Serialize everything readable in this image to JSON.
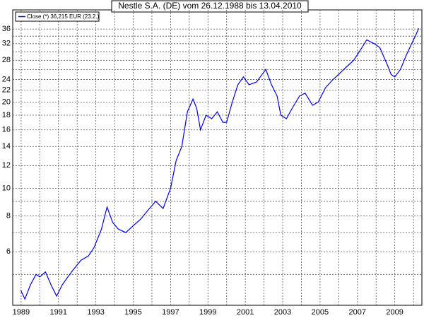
{
  "chart_data": {
    "type": "line",
    "title": "Nestle S.A. (DE) vom 26.12.1988 bis 13.04.2010",
    "log_scale_y": true,
    "grid": true,
    "x": [
      1988.98,
      1989.2,
      1989.5,
      1989.8,
      1990.0,
      1990.3,
      1990.6,
      1990.9,
      1991.2,
      1991.5,
      1991.8,
      1992.2,
      1992.6,
      1992.9,
      1993.3,
      1993.6,
      1993.9,
      1994.2,
      1994.6,
      1995.0,
      1995.4,
      1995.8,
      1996.2,
      1996.6,
      1997.0,
      1997.3,
      1997.6,
      1997.9,
      1998.2,
      1998.4,
      1998.6,
      1998.9,
      1999.2,
      1999.5,
      1999.8,
      2000.0,
      2000.3,
      2000.6,
      2000.9,
      2001.2,
      2001.6,
      2001.9,
      2002.1,
      2002.4,
      2002.7,
      2002.9,
      2003.2,
      2003.5,
      2003.9,
      2004.2,
      2004.6,
      2004.9,
      2005.3,
      2005.7,
      2006.0,
      2006.4,
      2006.8,
      2007.1,
      2007.5,
      2007.9,
      2008.2,
      2008.6,
      2008.8,
      2009.0,
      2009.3,
      2009.6,
      2009.9,
      2010.1,
      2010.28
    ],
    "series": [
      {
        "name": "Close (*) 36,215 EUR (23.2.)",
        "color": "#0000ee",
        "values": [
          4.4,
          4.1,
          4.6,
          5.0,
          4.9,
          5.1,
          4.6,
          4.2,
          4.6,
          4.9,
          5.2,
          5.6,
          5.8,
          6.2,
          7.2,
          8.6,
          7.6,
          7.2,
          7.0,
          7.4,
          7.8,
          8.4,
          9.0,
          8.5,
          10.0,
          12.5,
          14.0,
          18.5,
          20.5,
          19.0,
          16.0,
          18.0,
          17.5,
          18.5,
          17.0,
          17.0,
          20.0,
          23.0,
          24.5,
          23.0,
          23.5,
          25.0,
          26.0,
          23.0,
          21.0,
          18.0,
          17.5,
          19.0,
          21.0,
          21.5,
          19.5,
          20.0,
          22.5,
          24.0,
          25.0,
          26.5,
          28.0,
          30.0,
          33.0,
          32.0,
          31.0,
          27.0,
          25.0,
          24.5,
          26.0,
          29.0,
          32.0,
          34.0,
          36.2
        ]
      }
    ],
    "xlim": [
      1988.55,
      2010.45
    ],
    "xticks": [
      1989,
      1991,
      1993,
      1995,
      1997,
      1999,
      2001,
      2003,
      2005,
      2007,
      2009
    ],
    "xgrid_minor": [
      1990,
      1992,
      1994,
      1996,
      1998,
      2000,
      2002,
      2004,
      2006,
      2008,
      2010
    ],
    "ylim": [
      3.9,
      42
    ],
    "yticks": [
      6,
      8,
      10,
      12,
      14,
      16,
      18,
      20,
      22,
      24,
      28,
      32,
      36
    ],
    "ygrid_minor": [
      5,
      7,
      9,
      26,
      30,
      34
    ]
  }
}
